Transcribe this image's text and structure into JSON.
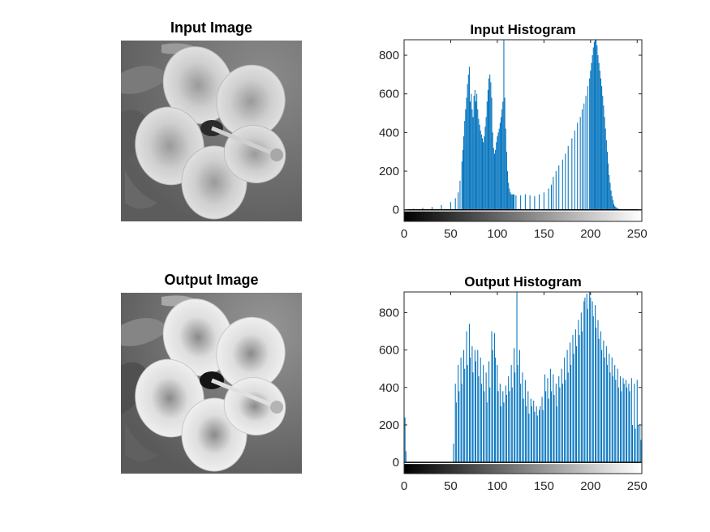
{
  "figure": {
    "panels": [
      {
        "title": "Input Image"
      },
      {
        "title": "Input Histogram"
      },
      {
        "title": "Output Image"
      },
      {
        "title": "Output Histogram"
      }
    ]
  },
  "colors": {
    "bar": "#0072bd",
    "axis": "#262626"
  },
  "chart_data": [
    {
      "type": "bar",
      "title": "Input Histogram",
      "xlabel": "",
      "ylabel": "",
      "xlim": [
        0,
        255
      ],
      "ylim": [
        -60,
        880
      ],
      "xticks": [
        0,
        50,
        100,
        150,
        200,
        250
      ],
      "yticks": [
        0,
        200,
        400,
        600,
        800
      ],
      "grid": false,
      "colorbar": "grayscale 0-255 below axis",
      "x": [
        0,
        10,
        20,
        30,
        40,
        50,
        55,
        58,
        60,
        62,
        63,
        64,
        65,
        66,
        67,
        68,
        69,
        70,
        71,
        72,
        73,
        74,
        75,
        76,
        77,
        78,
        79,
        80,
        81,
        82,
        83,
        84,
        85,
        86,
        87,
        88,
        89,
        90,
        91,
        92,
        93,
        94,
        95,
        96,
        97,
        98,
        99,
        100,
        101,
        102,
        103,
        104,
        105,
        106,
        107,
        108,
        109,
        110,
        111,
        112,
        113,
        114,
        115,
        116,
        117,
        118,
        120,
        125,
        130,
        135,
        140,
        145,
        150,
        155,
        158,
        160,
        163,
        166,
        170,
        173,
        176,
        180,
        183,
        186,
        189,
        191,
        193,
        195,
        197,
        199,
        200,
        201,
        202,
        203,
        204,
        205,
        206,
        207,
        208,
        209,
        210,
        211,
        212,
        213,
        214,
        215,
        216,
        217,
        218,
        219,
        220,
        221,
        222,
        223,
        224,
        225,
        226,
        227,
        228,
        229,
        230,
        232,
        235,
        240,
        245,
        250,
        255
      ],
      "values": [
        5,
        5,
        10,
        15,
        25,
        40,
        60,
        90,
        150,
        250,
        310,
        380,
        460,
        520,
        580,
        650,
        700,
        740,
        560,
        600,
        520,
        480,
        590,
        620,
        560,
        600,
        520,
        470,
        440,
        410,
        390,
        370,
        350,
        380,
        430,
        480,
        560,
        620,
        680,
        700,
        660,
        580,
        400,
        320,
        290,
        310,
        350,
        380,
        400,
        420,
        450,
        480,
        520,
        560,
        880,
        580,
        420,
        300,
        200,
        140,
        110,
        90,
        80,
        80,
        80,
        80,
        75,
        75,
        80,
        75,
        70,
        80,
        90,
        110,
        130,
        170,
        200,
        230,
        260,
        290,
        330,
        370,
        410,
        450,
        480,
        520,
        550,
        590,
        640,
        680,
        720,
        760,
        800,
        840,
        870,
        880,
        880,
        850,
        800,
        760,
        720,
        680,
        640,
        590,
        540,
        480,
        420,
        360,
        300,
        240,
        180,
        140,
        100,
        70,
        50,
        30,
        20,
        15,
        10,
        8,
        5,
        3,
        2,
        2,
        2,
        2,
        2
      ]
    },
    {
      "type": "bar",
      "title": "Output Histogram",
      "xlabel": "",
      "ylabel": "",
      "xlim": [
        0,
        255
      ],
      "ylim": [
        -60,
        910
      ],
      "xticks": [
        0,
        50,
        100,
        150,
        200,
        250
      ],
      "yticks": [
        0,
        200,
        400,
        600,
        800
      ],
      "grid": false,
      "colorbar": "grayscale 0-255 below axis",
      "x": [
        0,
        1,
        2,
        53,
        55,
        56,
        58,
        59,
        61,
        62,
        64,
        65,
        67,
        68,
        70,
        71,
        73,
        74,
        76,
        77,
        79,
        80,
        82,
        83,
        85,
        86,
        88,
        89,
        91,
        92,
        94,
        95,
        97,
        98,
        100,
        101,
        103,
        104,
        106,
        107,
        109,
        110,
        112,
        113,
        115,
        116,
        118,
        119,
        121,
        122,
        124,
        125,
        127,
        128,
        130,
        131,
        133,
        134,
        136,
        137,
        139,
        140,
        142,
        143,
        145,
        146,
        148,
        149,
        151,
        152,
        154,
        155,
        157,
        158,
        160,
        161,
        163,
        164,
        166,
        167,
        169,
        170,
        172,
        173,
        175,
        176,
        178,
        179,
        181,
        182,
        184,
        185,
        187,
        188,
        190,
        191,
        193,
        194,
        196,
        197,
        199,
        200,
        202,
        203,
        205,
        206,
        208,
        209,
        211,
        212,
        214,
        215,
        217,
        218,
        220,
        221,
        223,
        224,
        226,
        227,
        229,
        230,
        232,
        233,
        235,
        236,
        238,
        239,
        241,
        242,
        244,
        245,
        247,
        248,
        250,
        251,
        253,
        254
      ],
      "values": [
        350,
        240,
        60,
        100,
        420,
        320,
        520,
        380,
        560,
        420,
        600,
        500,
        700,
        520,
        740,
        560,
        620,
        480,
        600,
        540,
        600,
        460,
        560,
        420,
        520,
        380,
        480,
        320,
        540,
        400,
        700,
        600,
        690,
        560,
        520,
        380,
        420,
        300,
        380,
        320,
        410,
        360,
        460,
        380,
        520,
        400,
        610,
        480,
        910,
        520,
        600,
        420,
        480,
        340,
        440,
        300,
        380,
        260,
        340,
        300,
        330,
        270,
        300,
        250,
        280,
        300,
        350,
        280,
        470,
        380,
        450,
        340,
        500,
        380,
        470,
        360,
        420,
        300,
        460,
        400,
        500,
        420,
        560,
        440,
        600,
        480,
        640,
        520,
        680,
        580,
        710,
        620,
        760,
        680,
        800,
        700,
        860,
        880,
        900,
        820,
        910,
        880,
        860,
        780,
        840,
        720,
        760,
        660,
        700,
        600,
        650,
        560,
        620,
        520,
        580,
        480,
        560,
        460,
        520,
        440,
        500,
        400,
        460,
        380,
        450,
        420,
        440,
        400,
        420,
        380,
        450,
        200,
        420,
        180,
        440,
        200,
        200,
        120
      ]
    }
  ]
}
